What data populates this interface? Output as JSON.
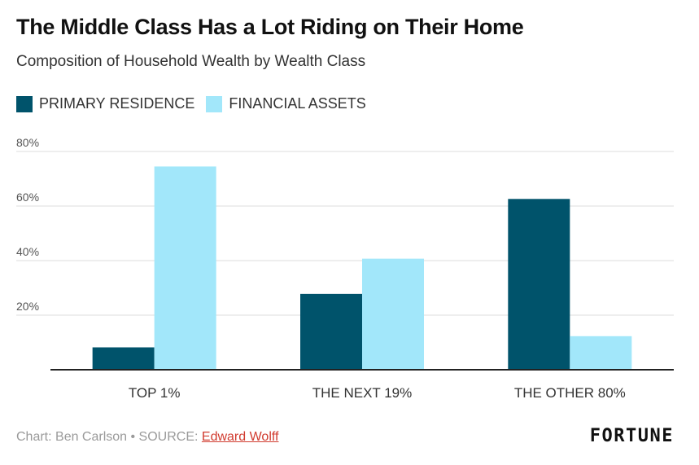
{
  "title": "The Middle Class Has a Lot Riding on Their Home",
  "subtitle": "Composition of Household Wealth by Wealth Class",
  "colors": {
    "primary_residence": "#00536b",
    "financial_assets": "#a2e7fa",
    "grid": "#dcdcdc",
    "axis": "#222222",
    "link": "#d13b2f"
  },
  "footer": {
    "credit": "Chart: Ben Carlson • SOURCE: ",
    "source_link": "Edward Wolff",
    "brand": "FORTUNE"
  },
  "chart_data": {
    "type": "bar",
    "title": "The Middle Class Has a Lot Riding on Their Home",
    "subtitle": "Composition of Household Wealth by Wealth Class",
    "categories": [
      "TOP 1%",
      "THE NEXT 19%",
      "THE OTHER 80%"
    ],
    "series": [
      {
        "name": "PRIMARY RESIDENCE",
        "values": [
          8.2,
          27.8,
          62.6
        ]
      },
      {
        "name": "FINANCIAL ASSETS",
        "values": [
          74.5,
          40.7,
          12.3
        ]
      }
    ],
    "ylim": [
      0,
      80
    ],
    "yticks": [
      20,
      40,
      60,
      80
    ],
    "ytick_labels": [
      "20%",
      "40%",
      "60%",
      "80%"
    ],
    "grid": true,
    "legend": "top-left"
  }
}
